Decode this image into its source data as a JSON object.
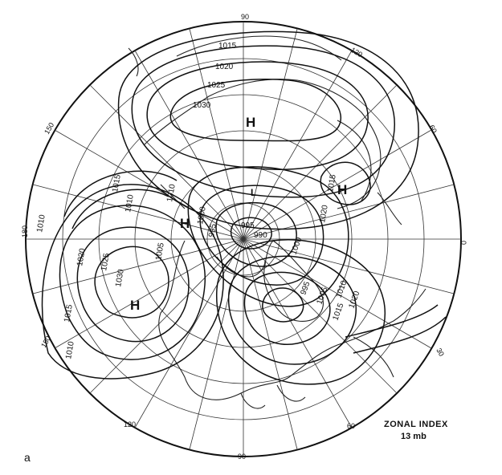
{
  "panel_label": "a",
  "index": {
    "title": "ZONAL INDEX",
    "subtitle": "13 mb"
  },
  "isobars": [
    "1015",
    "1020",
    "1025",
    "1030",
    "1015",
    "1010",
    "1010",
    "1020",
    "1025",
    "1030",
    "1015",
    "1010",
    "1010",
    "1005",
    "1000",
    "995",
    "995",
    "990",
    "1000",
    "995",
    "1005",
    "1010",
    "1015",
    "1020",
    "1015",
    "1020"
  ],
  "pressure_centers": [
    {
      "symbol": "H",
      "name": "high-pacific"
    },
    {
      "symbol": "H",
      "name": "high-west"
    },
    {
      "symbol": "H",
      "name": "high-east"
    },
    {
      "symbol": "H",
      "name": "high-aleutian"
    },
    {
      "symbol": "L",
      "name": "low-pole"
    }
  ],
  "longitudes": [
    "90",
    "180",
    "0",
    "30",
    "60",
    "90",
    "120",
    "150",
    "150",
    "120",
    "60"
  ],
  "colors": {
    "ink": "#111111",
    "paper": "#ffffff"
  }
}
